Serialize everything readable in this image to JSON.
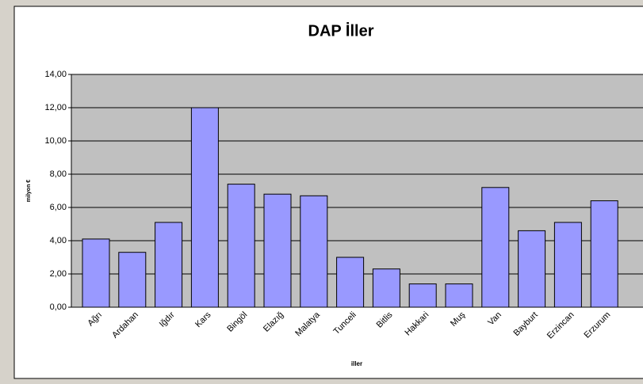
{
  "chart_data": {
    "type": "bar",
    "title": "DAP İller",
    "x_label": "iller",
    "y_label": "milyon €",
    "categories": [
      "Ağrı",
      "Ardahan",
      "Iğdır",
      "Kars",
      "Bingöl",
      "Elazığ",
      "Malatya",
      "Tunceli",
      "Bitlis",
      "Hakkari",
      "Muş",
      "Van",
      "Bayburt",
      "Erzincan",
      "Erzurum"
    ],
    "values": [
      4.1,
      3.3,
      5.1,
      12.0,
      7.4,
      6.8,
      6.7,
      3.0,
      2.3,
      1.4,
      1.4,
      7.2,
      4.6,
      5.1,
      6.4
    ],
    "color": "#9999ff",
    "ylim": [
      0,
      14
    ],
    "yticks": [
      {
        "value": 0,
        "label": "0,00"
      },
      {
        "value": 2,
        "label": "2,00"
      },
      {
        "value": 4,
        "label": "4,00"
      },
      {
        "value": 6,
        "label": "6,00"
      },
      {
        "value": 8,
        "label": "8,00"
      },
      {
        "value": 10,
        "label": "10,00"
      },
      {
        "value": 12,
        "label": "12,00"
      },
      {
        "value": 14,
        "label": "14,00"
      }
    ],
    "grid": true
  }
}
